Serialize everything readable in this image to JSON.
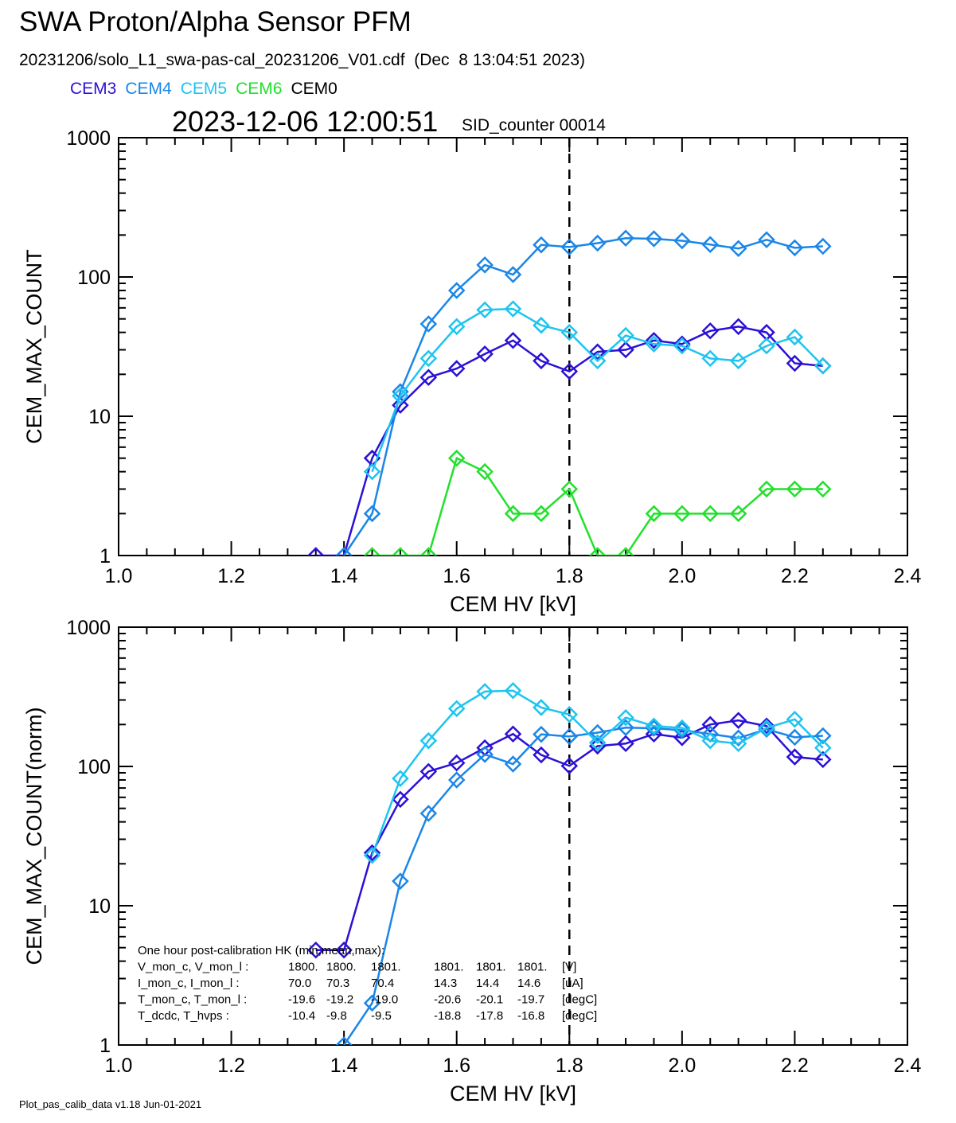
{
  "title": "SWA Proton/Alpha Sensor PFM",
  "subtitle": "20231206/solo_L1_swa-pas-cal_20231206_V01.cdf  (Dec  8 13:04:51 2023)",
  "legend": [
    {
      "label": "CEM3",
      "color": "#2b10d6"
    },
    {
      "label": "CEM4",
      "color": "#1a86e8"
    },
    {
      "label": "CEM5",
      "color": "#1ec4ef"
    },
    {
      "label": "CEM6",
      "color": "#22e02c"
    },
    {
      "label": "CEM0",
      "color": "#000000"
    }
  ],
  "timestamp": "2023-12-06 12:00:51",
  "sid_counter": "SID_counter 00014",
  "footer": "Plot_pas_calib_data v1.18 Jun-01-2021",
  "info_box": [
    [
      "One hour post-calibration HK (min,mean,max):",
      "",
      "",
      "",
      "",
      "",
      "",
      ""
    ],
    [
      "V_mon_c, V_mon_l :",
      "1800.",
      "1800.",
      "1801.",
      "1801.",
      "1801.",
      "1801.",
      "[V]"
    ],
    [
      "I_mon_c,  I_mon_l :",
      "70.0",
      "70.3",
      "70.4",
      "14.3",
      "14.4",
      "14.6",
      "[uA]"
    ],
    [
      "T_mon_c, T_mon_l :",
      "-19.6",
      "-19.2",
      "-19.0",
      "-20.6",
      "-20.1",
      "-19.7",
      "[degC]"
    ],
    [
      "T_dcdc,    T_hvps :",
      "-10.4",
      "-9.8",
      "-9.5",
      "-18.8",
      "-17.8",
      "-16.8",
      "[degC]"
    ]
  ],
  "chart_data": [
    {
      "type": "line",
      "xlabel": "CEM HV [kV]",
      "ylabel": "CEM_MAX_COUNT",
      "xlim": [
        1.0,
        2.4
      ],
      "ylim": [
        1,
        1000
      ],
      "yscale": "log",
      "x_ticks": [
        "1.0",
        "1.2",
        "1.4",
        "1.6",
        "1.8",
        "2.0",
        "2.2",
        "2.4"
      ],
      "y_ticks": [
        "1",
        "10",
        "100",
        "1000"
      ],
      "vline_x": 1.8,
      "series": [
        {
          "name": "CEM3",
          "color": "#2b10d6",
          "x": [
            1.35,
            1.4,
            1.45,
            1.5,
            1.55,
            1.6,
            1.65,
            1.7,
            1.75,
            1.8,
            1.85,
            1.9,
            1.95,
            2.0,
            2.05,
            2.1,
            2.15,
            2.2,
            2.25
          ],
          "y": [
            1,
            1,
            5,
            12,
            19,
            22,
            28,
            35,
            25,
            21,
            29,
            30,
            35,
            33,
            41,
            44,
            40,
            24,
            23
          ]
        },
        {
          "name": "CEM4",
          "color": "#1a86e8",
          "x": [
            1.4,
            1.45,
            1.5,
            1.55,
            1.6,
            1.65,
            1.7,
            1.75,
            1.8,
            1.85,
            1.9,
            1.95,
            2.0,
            2.05,
            2.1,
            2.15,
            2.2,
            2.25
          ],
          "y": [
            1,
            2,
            15,
            46,
            80,
            122,
            104,
            170,
            164,
            175,
            190,
            188,
            182,
            171,
            160,
            185,
            162,
            166
          ]
        },
        {
          "name": "CEM5",
          "color": "#1ec4ef",
          "x": [
            1.45,
            1.5,
            1.55,
            1.6,
            1.65,
            1.7,
            1.75,
            1.8,
            1.85,
            1.9,
            1.95,
            2.0,
            2.05,
            2.1,
            2.15,
            2.2,
            2.25
          ],
          "y": [
            4,
            14,
            26,
            44,
            58,
            59,
            45,
            40,
            25,
            38,
            33,
            32,
            26,
            25,
            32,
            37,
            23
          ]
        },
        {
          "name": "CEM6",
          "color": "#22e02c",
          "x": [
            1.45,
            1.5,
            1.55,
            1.6,
            1.65,
            1.7,
            1.75,
            1.8,
            1.85,
            1.9,
            1.95,
            2.0,
            2.05,
            2.1,
            2.15,
            2.2,
            2.25
          ],
          "y": [
            1,
            1,
            1,
            5,
            4,
            2,
            2,
            3,
            1,
            1,
            2,
            2,
            2,
            2,
            3,
            3,
            3
          ]
        }
      ]
    },
    {
      "type": "line",
      "xlabel": "CEM HV [kV]",
      "ylabel": "CEM_MAX_COUNT(norm)",
      "xlim": [
        1.0,
        2.4
      ],
      "ylim": [
        1,
        1000
      ],
      "yscale": "log",
      "x_ticks": [
        "1.0",
        "1.2",
        "1.4",
        "1.6",
        "1.8",
        "2.0",
        "2.2",
        "2.4"
      ],
      "y_ticks": [
        "1",
        "10",
        "100",
        "1000"
      ],
      "vline_x": 1.8,
      "series": [
        {
          "name": "CEM3",
          "color": "#2b10d6",
          "x": [
            1.35,
            1.4,
            1.45,
            1.5,
            1.55,
            1.6,
            1.65,
            1.7,
            1.75,
            1.8,
            1.85,
            1.9,
            1.95,
            2.0,
            2.05,
            2.1,
            2.15,
            2.2,
            2.25
          ],
          "y": [
            4.8,
            4.8,
            24,
            58,
            92,
            106,
            136,
            171,
            121,
            101,
            140,
            146,
            171,
            161,
            200,
            214,
            195,
            117,
            112
          ]
        },
        {
          "name": "CEM4",
          "color": "#1a86e8",
          "x": [
            1.4,
            1.45,
            1.5,
            1.55,
            1.6,
            1.65,
            1.7,
            1.75,
            1.8,
            1.85,
            1.9,
            1.95,
            2.0,
            2.05,
            2.1,
            2.15,
            2.2,
            2.25
          ],
          "y": [
            1,
            2,
            15,
            46,
            80,
            122,
            104,
            170,
            164,
            175,
            190,
            188,
            182,
            171,
            160,
            185,
            162,
            166
          ]
        },
        {
          "name": "CEM5",
          "color": "#1ec4ef",
          "x": [
            1.45,
            1.5,
            1.55,
            1.6,
            1.65,
            1.7,
            1.75,
            1.8,
            1.85,
            1.9,
            1.95,
            2.0,
            2.05,
            2.1,
            2.15,
            2.2,
            2.25
          ],
          "y": [
            23,
            82,
            153,
            260,
            345,
            350,
            265,
            236,
            148,
            224,
            195,
            189,
            153,
            146,
            189,
            218,
            136
          ]
        }
      ]
    }
  ]
}
